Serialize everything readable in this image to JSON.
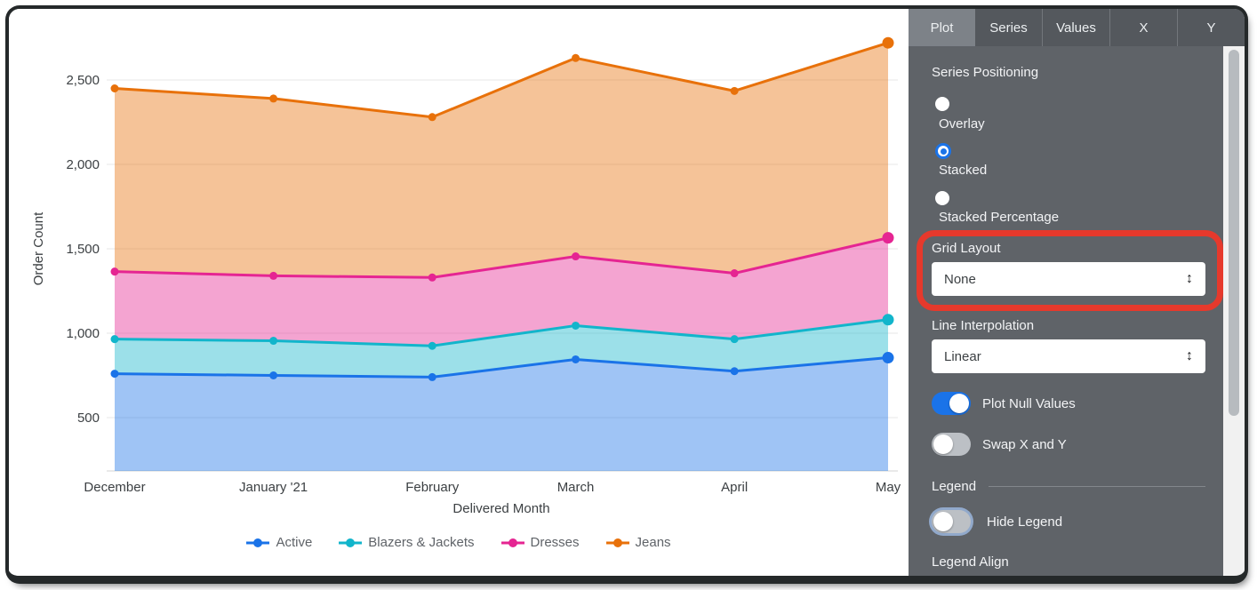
{
  "chart_data": {
    "type": "area",
    "stacking": "stacked",
    "xlabel": "Delivered Month",
    "ylabel": "Order Count",
    "categories": [
      "December",
      "January '21",
      "February",
      "March",
      "April",
      "May"
    ],
    "x_day_offsets": [
      0,
      31,
      62,
      90,
      121,
      151
    ],
    "y_ticks": [
      500,
      1000,
      1500,
      2000,
      2500
    ],
    "y_tick_labels": [
      "500",
      "1,000",
      "1,500",
      "2,000",
      "2,500"
    ],
    "ylim": [
      185,
      2870
    ],
    "grid": "horizontal",
    "legend_position": "bottom",
    "series": [
      {
        "name": "Active",
        "color": "#1a73e8",
        "values": [
          760,
          750,
          740,
          845,
          775,
          855
        ]
      },
      {
        "name": "Blazers & Jackets",
        "color": "#12b5cb",
        "values": [
          205,
          205,
          185,
          200,
          190,
          225
        ]
      },
      {
        "name": "Dresses",
        "color": "#e52592",
        "values": [
          400,
          385,
          405,
          410,
          390,
          485
        ]
      },
      {
        "name": "Jeans",
        "color": "#e8710a",
        "values": [
          1085,
          1050,
          950,
          1175,
          1080,
          1155
        ]
      }
    ],
    "stacked_totals": [
      2450,
      2390,
      2280,
      2630,
      2435,
      2720
    ]
  },
  "panel": {
    "tabs": [
      {
        "label": "Plot",
        "active": true
      },
      {
        "label": "Series",
        "active": false
      },
      {
        "label": "Values",
        "active": false
      },
      {
        "label": "X",
        "active": false
      },
      {
        "label": "Y",
        "active": false
      }
    ],
    "series_positioning": {
      "label": "Series Positioning",
      "options": [
        {
          "label": "Overlay",
          "selected": false
        },
        {
          "label": "Stacked",
          "selected": true
        },
        {
          "label": "Stacked Percentage",
          "selected": false
        }
      ]
    },
    "grid_layout": {
      "label": "Grid Layout",
      "value": "None"
    },
    "line_interpolation": {
      "label": "Line Interpolation",
      "value": "Linear"
    },
    "plot_null_values": {
      "label": "Plot Null Values",
      "on": true
    },
    "swap_x_y": {
      "label": "Swap X and Y",
      "on": false
    },
    "legend": {
      "header": "Legend",
      "hide_legend": {
        "label": "Hide Legend",
        "on": false,
        "focused": true
      },
      "align_label": "Legend Align"
    }
  },
  "annotation": {
    "type": "highlight-box",
    "target": "Grid Layout",
    "color": "#e6392c"
  }
}
